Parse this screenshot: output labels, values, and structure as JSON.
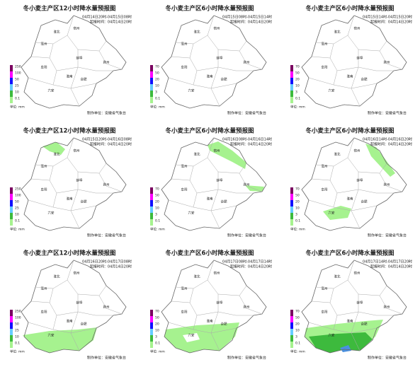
{
  "panels": [
    {
      "title": "冬小麦主产区12小时降水量预报图",
      "period": "04月14日20时-04月15日08时",
      "issued": "起报时间：04月14日20时",
      "legend": [
        250,
        100,
        50,
        25,
        10,
        0.1
      ]
    },
    {
      "title": "冬小麦主产区6小时降水量预报图",
      "period": "04月15日08时-04月15日14时",
      "issued": "起报时间：04月14日20时",
      "legend": [
        70,
        50,
        20,
        10,
        3,
        0.1
      ]
    },
    {
      "title": "冬小麦主产区6小时降水量预报图",
      "period": "04月15日14时-04月15日20时",
      "issued": "起报时间：04月14日20时",
      "legend": [
        70,
        50,
        20,
        10,
        3,
        0.1
      ]
    },
    {
      "title": "冬小麦主产区12小时降水量预报图",
      "period": "04月15日20时-04月16日08时",
      "issued": "起报时间：04月14日20时",
      "legend": [
        250,
        100,
        50,
        25,
        10,
        0.1
      ]
    },
    {
      "title": "冬小麦主产区6小时降水量预报图",
      "period": "04月16日08时-04月16日14时",
      "issued": "起报时间：04月14日20时",
      "legend": [
        70,
        50,
        20,
        10,
        3,
        0.1
      ]
    },
    {
      "title": "冬小麦主产区6小时降水量预报图",
      "period": "04月16日14时-04月16日20时",
      "issued": "起报时间：04月14日20时",
      "legend": [
        70,
        50,
        20,
        10,
        3,
        0.1
      ]
    },
    {
      "title": "冬小麦主产区12小时降水量预报图",
      "period": "04月16日20时-04月17日08时",
      "issued": "起报时间：04月14日20时",
      "legend": [
        250,
        100,
        50,
        25,
        10,
        0.1
      ]
    },
    {
      "title": "冬小麦主产区6小时降水量预报图",
      "period": "04月17日08时-04月17日14时",
      "issued": "起报时间：04月14日20时",
      "legend": [
        70,
        50,
        20,
        10,
        3,
        0.1
      ]
    },
    {
      "title": "冬小麦主产区6小时降水量预报图",
      "period": "04月17日14时-04月17日20时",
      "issued": "起报时间：04月14日20时",
      "legend": [
        70,
        50,
        20,
        10,
        3,
        0.1
      ]
    }
  ],
  "legend_colors": [
    "#7a0060",
    "#ff00ff",
    "#1010ff",
    "#66ccff",
    "#3dba3d",
    "#a6f28f"
  ],
  "unit": "单位: mm",
  "producer": "制作单位：安徽省气象台",
  "cities": [
    "宿州",
    "淮北",
    "亳州",
    "蚌埠",
    "阜阳",
    "淮南",
    "滁州",
    "合肥",
    "六安"
  ]
}
